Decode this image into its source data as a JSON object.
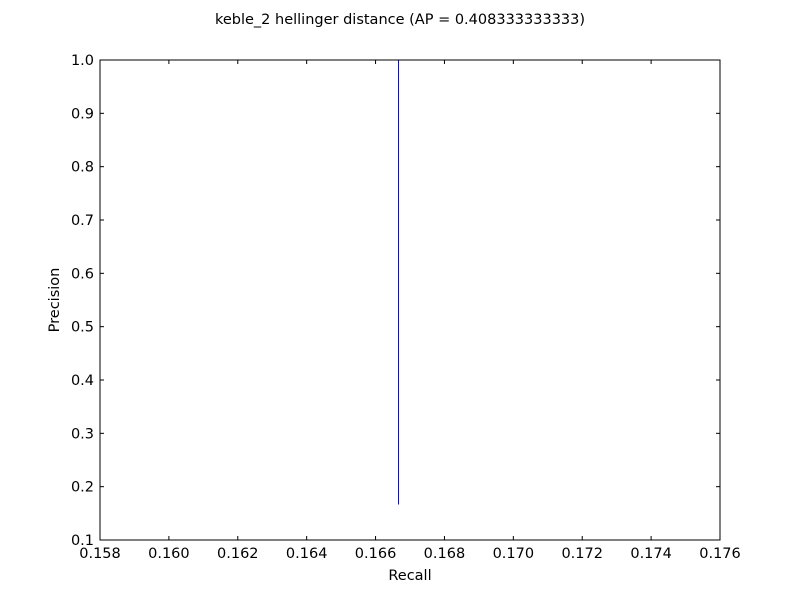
{
  "chart_data": {
    "type": "line",
    "title": "keble_2 hellinger distance  (AP = 0.408333333333)",
    "xlabel": "Recall",
    "ylabel": "Precision",
    "xlim": [
      0.158,
      0.176
    ],
    "ylim": [
      0.1,
      1.0
    ],
    "xticks": [
      "0.158",
      "0.160",
      "0.162",
      "0.164",
      "0.166",
      "0.168",
      "0.170",
      "0.172",
      "0.174",
      "0.176"
    ],
    "yticks": [
      "0.1",
      "0.2",
      "0.3",
      "0.4",
      "0.5",
      "0.6",
      "0.7",
      "0.8",
      "0.9",
      "1.0"
    ],
    "grid": false,
    "legend": "none",
    "series": [
      {
        "color": "#0000ff",
        "x": [
          0.166667,
          0.166667
        ],
        "y": [
          1.0,
          0.166667
        ]
      }
    ]
  }
}
